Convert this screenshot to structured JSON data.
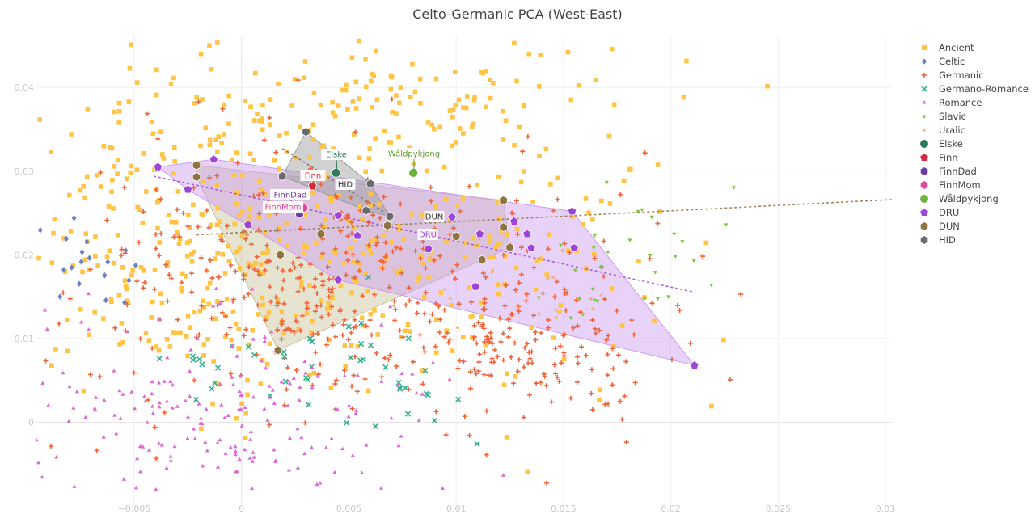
{
  "chart_data": {
    "type": "scatter",
    "title": "Celto-Germanic PCA (West-East)",
    "xlabel": "",
    "ylabel": "",
    "xlim": [
      -0.0096,
      0.0303
    ],
    "ylim": [
      -0.0098,
      0.0462
    ],
    "x_ticks": [
      -0.005,
      0,
      0.005,
      0.01,
      0.015,
      0.02,
      0.025,
      0.03
    ],
    "x_tick_labels": [
      "−0.005",
      "0",
      "0.005",
      "0.01",
      "0.015",
      "0.02",
      "0.025",
      "0.03"
    ],
    "y_ticks": [
      0,
      0.01,
      0.02,
      0.03,
      0.04
    ],
    "y_tick_labels": [
      "0",
      "0.01",
      "0.02",
      "0.03",
      "0.04"
    ],
    "grid": true,
    "legend_position": "right",
    "background_series": [
      {
        "name": "Ancient",
        "symbol": "square",
        "color": "#ffc445",
        "count": 620,
        "clouds": [
          [
            -0.002,
            0.0215,
            0.005,
            0.009,
            0.55
          ],
          [
            0.007,
            0.038,
            0.006,
            0.004,
            0.2
          ],
          [
            0.01,
            0.02,
            0.005,
            0.009,
            0.25
          ]
        ]
      },
      {
        "name": "Celtic",
        "symbol": "diamond",
        "color": "#6a81c4",
        "count": 18,
        "clouds": [
          [
            -0.0075,
            0.018,
            0.0015,
            0.003,
            1
          ]
        ]
      },
      {
        "name": "Germanic",
        "symbol": "cross",
        "color": "#f0643c",
        "count": 520,
        "clouds": [
          [
            0.004,
            0.016,
            0.006,
            0.008,
            0.75
          ],
          [
            0.014,
            0.009,
            0.003,
            0.004,
            0.25
          ]
        ]
      },
      {
        "name": "Germano-Romance",
        "symbol": "x",
        "color": "#35b08e",
        "count": 45,
        "clouds": [
          [
            0.004,
            0.006,
            0.004,
            0.004,
            1
          ]
        ]
      },
      {
        "name": "Romance",
        "symbol": "triangle-up",
        "color": "#dd6ad2",
        "count": 200,
        "clouds": [
          [
            -0.001,
            0.001,
            0.005,
            0.006,
            1
          ]
        ]
      },
      {
        "name": "Slavic",
        "symbol": "triangle-down",
        "color": "#7cc73f",
        "count": 30,
        "clouds": [
          [
            0.018,
            0.019,
            0.0025,
            0.004,
            1
          ]
        ]
      },
      {
        "name": "Uralic",
        "symbol": "triangle-left",
        "color": "#f1b27a",
        "count": 20,
        "clouds": [
          [
            0.013,
            0.015,
            0.004,
            0.004,
            1
          ]
        ]
      }
    ],
    "individuals": [
      {
        "name": "Elske",
        "symbol": "circle",
        "color": "#2d7a5a",
        "x": 0.0044,
        "y": 0.0298
      },
      {
        "name": "Finn",
        "symbol": "pentagon",
        "color": "#d6283c",
        "x": 0.0033,
        "y": 0.0282
      },
      {
        "name": "FinnDad",
        "symbol": "hexagon",
        "color": "#6a3aa8",
        "x": 0.0027,
        "y": 0.0249
      },
      {
        "name": "FinnMom",
        "symbol": "hexagon",
        "color": "#e0489a",
        "x": 0.0029,
        "y": 0.0256
      },
      {
        "name": "Wåldpykjong",
        "symbol": "circle",
        "color": "#6db33f",
        "x": 0.008,
        "y": 0.0298
      }
    ],
    "groups": [
      {
        "name": "DRU",
        "symbol": "pentagon",
        "color": "#9d45d8",
        "hull_fill": "#cc9bf0",
        "points": [
          [
            -0.0039,
            0.0305
          ],
          [
            -0.0013,
            0.0314
          ],
          [
            -0.0025,
            0.0278
          ],
          [
            0.0003,
            0.0236
          ],
          [
            0.0018,
            0.0258
          ],
          [
            0.0045,
            0.0247
          ],
          [
            0.0054,
            0.0223
          ],
          [
            0.0045,
            0.017
          ],
          [
            0.0087,
            0.0207
          ],
          [
            0.0098,
            0.0245
          ],
          [
            0.0111,
            0.0225
          ],
          [
            0.0127,
            0.024
          ],
          [
            0.0133,
            0.0225
          ],
          [
            0.0135,
            0.0208
          ],
          [
            0.0154,
            0.0252
          ],
          [
            0.0155,
            0.0208
          ],
          [
            0.0109,
            0.0162
          ],
          [
            0.0211,
            0.0068
          ]
        ],
        "trend": [
          [
            -0.0041,
            0.0294
          ],
          [
            0.021,
            0.0156
          ]
        ]
      },
      {
        "name": "DUN",
        "symbol": "hexagon",
        "color": "#8d7442",
        "hull_fill": "#c9c19a",
        "points": [
          [
            -0.0021,
            0.0307
          ],
          [
            -0.0021,
            0.0293
          ],
          [
            0.0018,
            0.02
          ],
          [
            0.0037,
            0.0225
          ],
          [
            0.0017,
            0.0086
          ],
          [
            0.0068,
            0.0235
          ],
          [
            0.01,
            0.0222
          ],
          [
            0.0112,
            0.0194
          ],
          [
            0.0122,
            0.0265
          ],
          [
            0.0122,
            0.0233
          ],
          [
            0.0125,
            0.0209
          ]
        ],
        "trend": [
          [
            -0.0021,
            0.0224
          ],
          [
            0.0303,
            0.0266
          ]
        ]
      },
      {
        "name": "HID",
        "symbol": "hexagon",
        "color": "#6b6b6b",
        "hull_fill": "#9a9a9a",
        "points": [
          [
            0.003,
            0.0347
          ],
          [
            0.0019,
            0.0294
          ],
          [
            0.006,
            0.0285
          ],
          [
            0.0069,
            0.0246
          ],
          [
            0.0058,
            0.0253
          ]
        ],
        "trend": [
          [
            0.0019,
            0.0327
          ],
          [
            0.0069,
            0.0247
          ]
        ]
      }
    ],
    "annotations": [
      {
        "text": "Elske",
        "color": "#2d7a5a"
      },
      {
        "text": "Finn",
        "color": "#d6283c"
      },
      {
        "text": "HID",
        "color": "#333333"
      },
      {
        "text": "Wåldpykjong",
        "color": "#5f9e2f"
      },
      {
        "text": "FinnDad",
        "color": "#6a3aa8"
      },
      {
        "text": "FinnMom",
        "color": "#e0489a"
      },
      {
        "text": "DUN",
        "color": "#333333"
      },
      {
        "text": "DRU",
        "color": "#9d45d8"
      }
    ],
    "legend": [
      {
        "label": "Ancient",
        "symbol": "square",
        "color": "#ffc445"
      },
      {
        "label": "Celtic",
        "symbol": "diamond",
        "color": "#6a81c4"
      },
      {
        "label": "Germanic",
        "symbol": "cross",
        "color": "#f0643c"
      },
      {
        "label": "Germano-Romance",
        "symbol": "x",
        "color": "#35b08e"
      },
      {
        "label": "Romance",
        "symbol": "triangle-up",
        "color": "#dd6ad2"
      },
      {
        "label": "Slavic",
        "symbol": "triangle-down",
        "color": "#7cc73f"
      },
      {
        "label": "Uralic",
        "symbol": "triangle-left",
        "color": "#f1b27a"
      },
      {
        "label": "Elske",
        "symbol": "circle",
        "color": "#2d7a5a"
      },
      {
        "label": "Finn",
        "symbol": "pentagon",
        "color": "#d6283c"
      },
      {
        "label": "FinnDad",
        "symbol": "hexagon",
        "color": "#6a3aa8"
      },
      {
        "label": "FinnMom",
        "symbol": "hexagon",
        "color": "#e0489a"
      },
      {
        "label": "Wåldpykjong",
        "symbol": "circle",
        "color": "#6db33f"
      },
      {
        "label": "DRU",
        "symbol": "pentagon",
        "color": "#9d45d8"
      },
      {
        "label": "DUN",
        "symbol": "hexagon",
        "color": "#8d7442"
      },
      {
        "label": "HID",
        "symbol": "hexagon",
        "color": "#6b6b6b"
      }
    ]
  }
}
